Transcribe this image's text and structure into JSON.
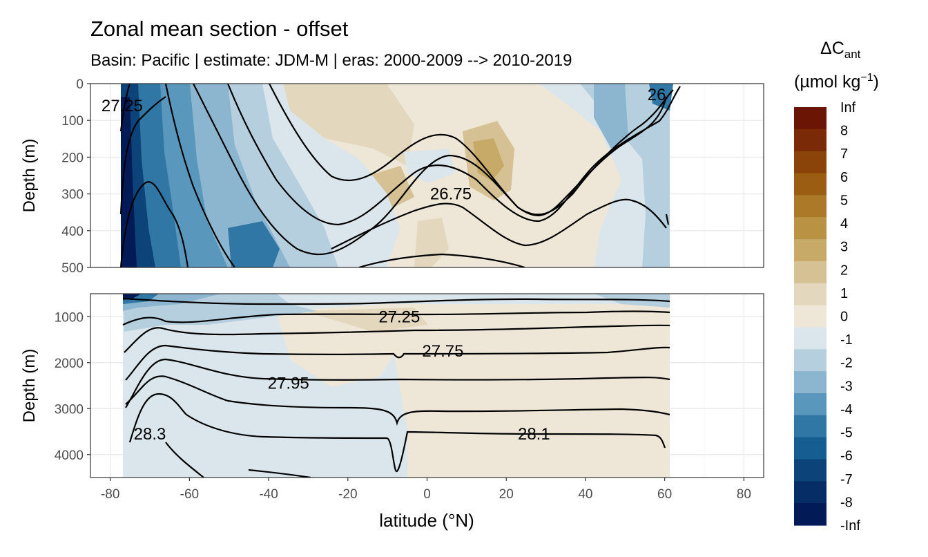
{
  "title": "Zonal mean section - offset",
  "subtitle": "Basin: Pacific | estimate: JDM-M | eras: 2000-2009 --> 2010-2019",
  "chart_data": {
    "type": "heatmap",
    "title": "Zonal mean section - offset",
    "subtitle": "Basin: Pacific | estimate: JDM-M | eras: 2000-2009 --> 2010-2019",
    "xlabel": "latitude (°N)",
    "xlim": [
      -85,
      85
    ],
    "xticks": [
      -80,
      -60,
      -40,
      -20,
      0,
      20,
      40,
      60,
      80
    ],
    "xtick_labels": [
      "-80",
      "-60",
      "-40",
      "-20",
      "0",
      "20",
      "40",
      "60",
      "80"
    ],
    "panels": [
      {
        "name": "upper",
        "ylabel": "Depth (m)",
        "ylim": [
          0,
          500
        ],
        "yticks": [
          0,
          100,
          200,
          300,
          400,
          500
        ],
        "ytick_labels": [
          "0",
          "100",
          "200",
          "300",
          "400",
          "500"
        ],
        "contour_labels": [
          {
            "text": "27.25",
            "lat": -77,
            "depth": 60
          },
          {
            "text": "26",
            "lat": 58,
            "depth": 30
          },
          {
            "text": "26.75",
            "lat": 6,
            "depth": 300
          }
        ]
      },
      {
        "name": "lower",
        "ylabel": "Depth (m)",
        "ylim": [
          500,
          4500
        ],
        "yticks": [
          1000,
          2000,
          3000,
          4000
        ],
        "ytick_labels": [
          "1000",
          "2000",
          "3000",
          "4000"
        ],
        "contour_labels": [
          {
            "text": "27.25",
            "lat": -7,
            "depth": 1000
          },
          {
            "text": "27.75",
            "lat": 4,
            "depth": 1750
          },
          {
            "text": "27.95",
            "lat": -35,
            "depth": 2450
          },
          {
            "text": "28.3",
            "lat": -70,
            "depth": 3550
          },
          {
            "text": "28.1",
            "lat": 27,
            "depth": 3550
          }
        ]
      }
    ],
    "legend": {
      "title": "ΔC",
      "title_subscript": "ant",
      "unit": "(µmol kg",
      "unit_superscript": "−1",
      "unit_close": ")",
      "placement": "right",
      "labels": [
        "Inf",
        "8",
        "7",
        "6",
        "5",
        "4",
        "3",
        "2",
        "1",
        "0",
        "-1",
        "-2",
        "-3",
        "-4",
        "-5",
        "-6",
        "-7",
        "-8",
        "-Inf"
      ],
      "colors": [
        "#6b1604",
        "#7a2a07",
        "#8a4308",
        "#9a5d12",
        "#ab7a28",
        "#b99244",
        "#c7aa68",
        "#d5c193",
        "#e3d8bd",
        "#eee6d6",
        "#dbe6ec",
        "#b5cfdf",
        "#8cb6cf",
        "#5a97bc",
        "#3077a6",
        "#165d91",
        "#0c4479",
        "#062d66",
        "#021a56"
      ]
    }
  }
}
